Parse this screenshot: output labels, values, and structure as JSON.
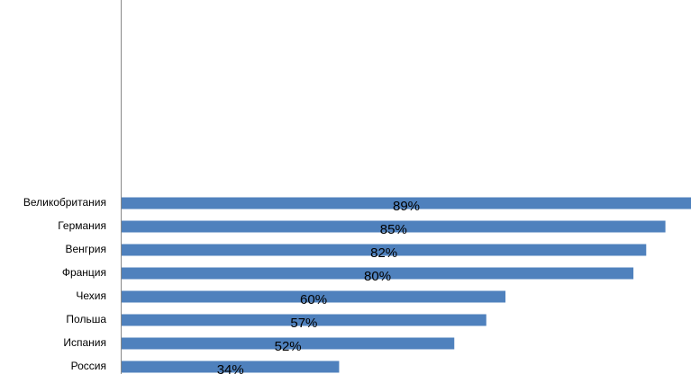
{
  "chart_data": {
    "type": "bar",
    "orientation": "horizontal",
    "categories": [
      "Великобритания",
      "Германия",
      "Венгрия",
      "Франция",
      "Чехия",
      "Польша",
      "Испания",
      "Россия"
    ],
    "values": [
      89,
      85,
      82,
      80,
      60,
      57,
      52,
      34
    ],
    "value_labels": [
      "89%",
      "85%",
      "82%",
      "80%",
      "60%",
      "57%",
      "52%",
      "34%"
    ],
    "color": "#4f81bd",
    "xlim": [
      0,
      89
    ]
  }
}
